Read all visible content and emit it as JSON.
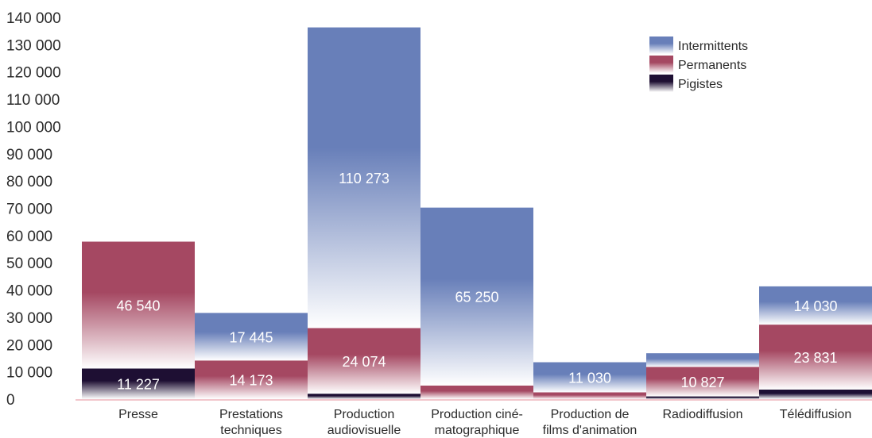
{
  "chart_data": {
    "type": "bar",
    "stacked": true,
    "categories": [
      [
        "Presse"
      ],
      [
        "Prestations",
        "techniques"
      ],
      [
        "Production",
        "audiovisuelle"
      ],
      [
        "Production ciné-",
        "matographique"
      ],
      [
        "Production de",
        "films d'animation"
      ],
      [
        "Radiodiffusion"
      ],
      [
        "Télédiffusion"
      ]
    ],
    "yticks": [
      "0",
      "10 000",
      "20 000",
      "30 000",
      "40 000",
      "50 000",
      "60 000",
      "70 000",
      "80 000",
      "90 000",
      "100 000",
      "110 000",
      "120 000",
      "130 000",
      "140 000"
    ],
    "ylim": [
      0,
      140000
    ],
    "series": [
      {
        "name": "Pigistes",
        "values": [
          11227,
          0,
          2000,
          0,
          0,
          1000,
          3500
        ],
        "labels": [
          "11 227",
          "",
          "",
          "",
          "",
          "",
          ""
        ],
        "color_top": "#ffffff",
        "color_bottom": "#1e0f33"
      },
      {
        "name": "Permanents",
        "values": [
          46540,
          14173,
          24074,
          5000,
          2500,
          10827,
          23831
        ],
        "labels": [
          "46 540",
          "14 173",
          "24 074",
          "",
          "",
          "10 827",
          "23 831"
        ],
        "color_top": "#ffffff",
        "color_bottom": "#a54862"
      },
      {
        "name": "Intermittents",
        "values": [
          0,
          17445,
          110273,
          65250,
          11030,
          5000,
          14030
        ],
        "labels": [
          "",
          "17 445",
          "110 273",
          "65 250",
          "11 030",
          "",
          "14 030"
        ],
        "color_top": "#ffffff",
        "color_bottom": "#687fb9"
      }
    ],
    "legend": {
      "position": "top-right",
      "order": [
        "Intermittents",
        "Permanents",
        "Pigistes"
      ]
    },
    "grid": false
  }
}
